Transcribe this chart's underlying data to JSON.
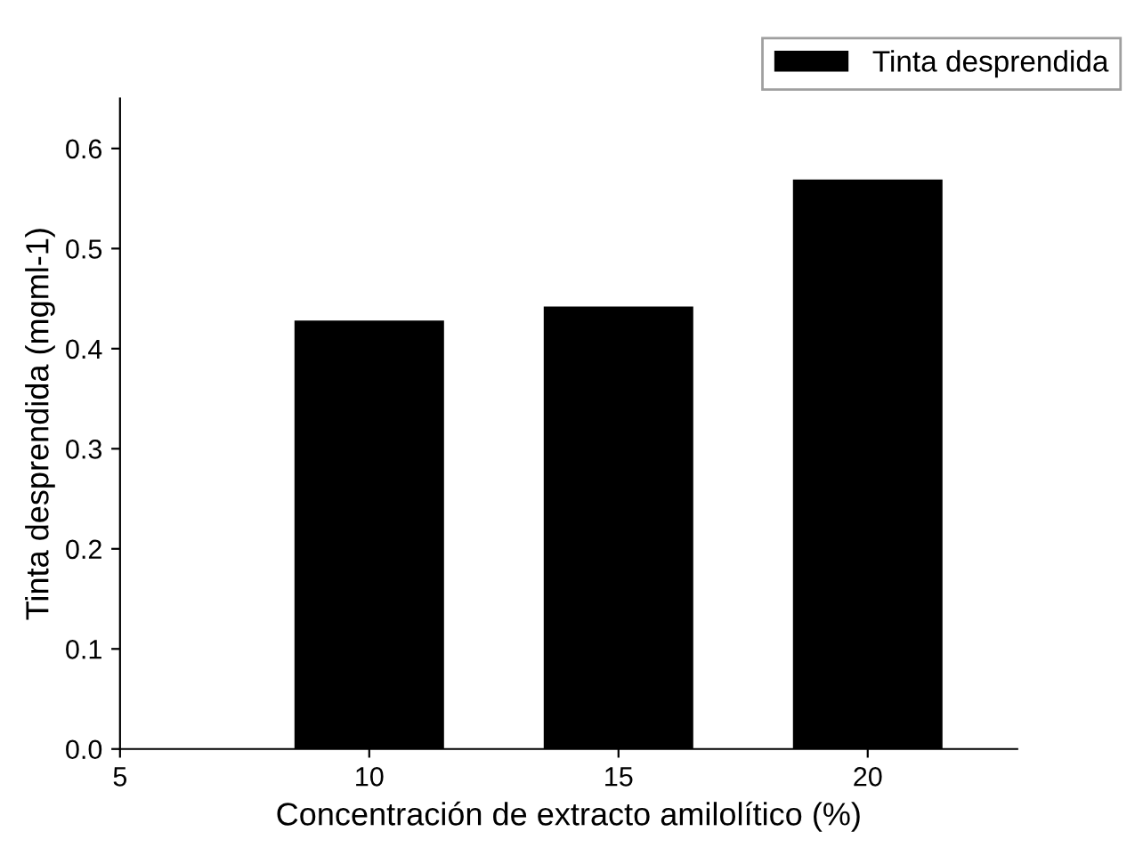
{
  "chart_data": {
    "type": "bar",
    "xlabel": "Concentración de extracto amilolítico (%)",
    "ylabel": "Tinta desprendida (mgml-1)",
    "x": [
      10,
      15,
      20
    ],
    "series": [
      {
        "name": "Tinta desprendida",
        "color": "#000000",
        "values": [
          0.428,
          0.442,
          0.569
        ]
      }
    ],
    "xlim": [
      5,
      23
    ],
    "xticks": [
      5,
      10,
      15,
      20
    ],
    "ylim": [
      0,
      0.65
    ],
    "yticks": [
      {
        "value": 0,
        "label": "0.0"
      },
      0.1,
      0.2,
      0.3,
      0.4,
      0.5,
      0.6
    ],
    "legend": "top right",
    "grid": false
  }
}
